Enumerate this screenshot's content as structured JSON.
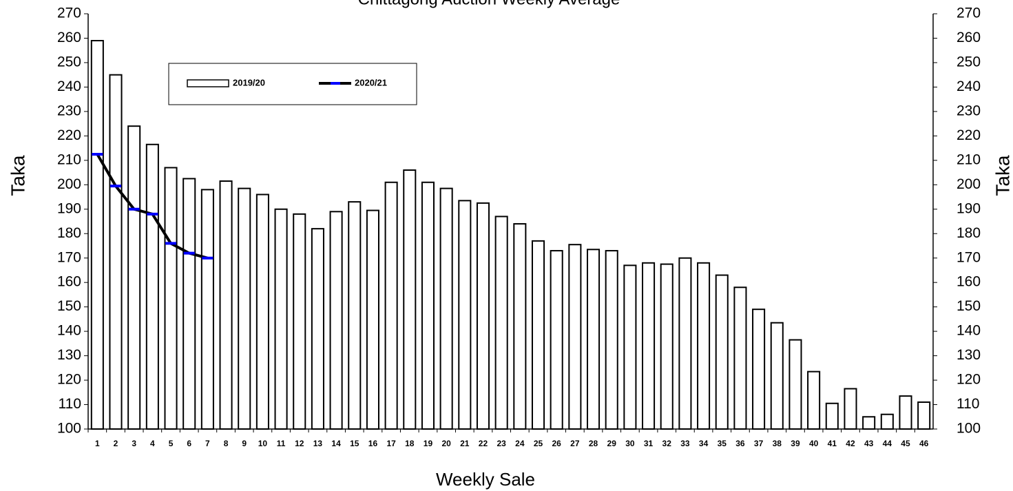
{
  "chart_data": {
    "type": "bar",
    "title": "Chittagong Auction Weekly Average",
    "xlabel": "Weekly Sale",
    "ylabel": "Taka",
    "y2label": "Taka",
    "categories": [
      "1",
      "2",
      "3",
      "4",
      "5",
      "6",
      "7",
      "8",
      "9",
      "10",
      "11",
      "12",
      "13",
      "14",
      "15",
      "16",
      "17",
      "18",
      "19",
      "20",
      "21",
      "22",
      "23",
      "24",
      "25",
      "26",
      "27",
      "28",
      "29",
      "30",
      "31",
      "32",
      "33",
      "34",
      "35",
      "36",
      "37",
      "38",
      "39",
      "40",
      "41",
      "42",
      "43",
      "44",
      "45",
      "46"
    ],
    "series": [
      {
        "name": "2019/20",
        "type": "bar",
        "color": "#ffffff",
        "values": [
          259,
          245,
          224,
          216.5,
          207,
          202.5,
          198,
          201.5,
          198.5,
          196,
          190,
          188,
          182,
          189,
          193,
          189.5,
          201,
          206,
          201,
          198.5,
          193.5,
          192.5,
          187,
          184,
          177,
          173,
          175.5,
          173.5,
          173,
          167,
          168,
          167.5,
          170,
          168,
          163,
          158,
          149,
          143.5,
          136.5,
          123.5,
          110.5,
          116.5,
          105,
          106,
          113.5,
          111
        ]
      },
      {
        "name": "2020/21",
        "type": "line",
        "color": "#000000",
        "marker_color": "#0000ff",
        "values": [
          212.5,
          199.5,
          190,
          188,
          176,
          172,
          170,
          null,
          null,
          null,
          null,
          null,
          null,
          null,
          null,
          null,
          null,
          null,
          null,
          null,
          null,
          null,
          null,
          null,
          null,
          null,
          null,
          null,
          null,
          null,
          null,
          null,
          null,
          null,
          null,
          null,
          null,
          null,
          null,
          null,
          null,
          null,
          null,
          null,
          null,
          null
        ]
      }
    ],
    "ylim": [
      100,
      270
    ],
    "yticks": [
      100,
      110,
      120,
      130,
      140,
      150,
      160,
      170,
      180,
      190,
      200,
      210,
      220,
      230,
      240,
      250,
      260,
      270
    ],
    "y2lim": [
      100,
      270
    ],
    "y2ticks": [
      100,
      110,
      120,
      130,
      140,
      150,
      160,
      170,
      180,
      190,
      200,
      210,
      220,
      230,
      240,
      250,
      260,
      270
    ],
    "grid": false
  }
}
